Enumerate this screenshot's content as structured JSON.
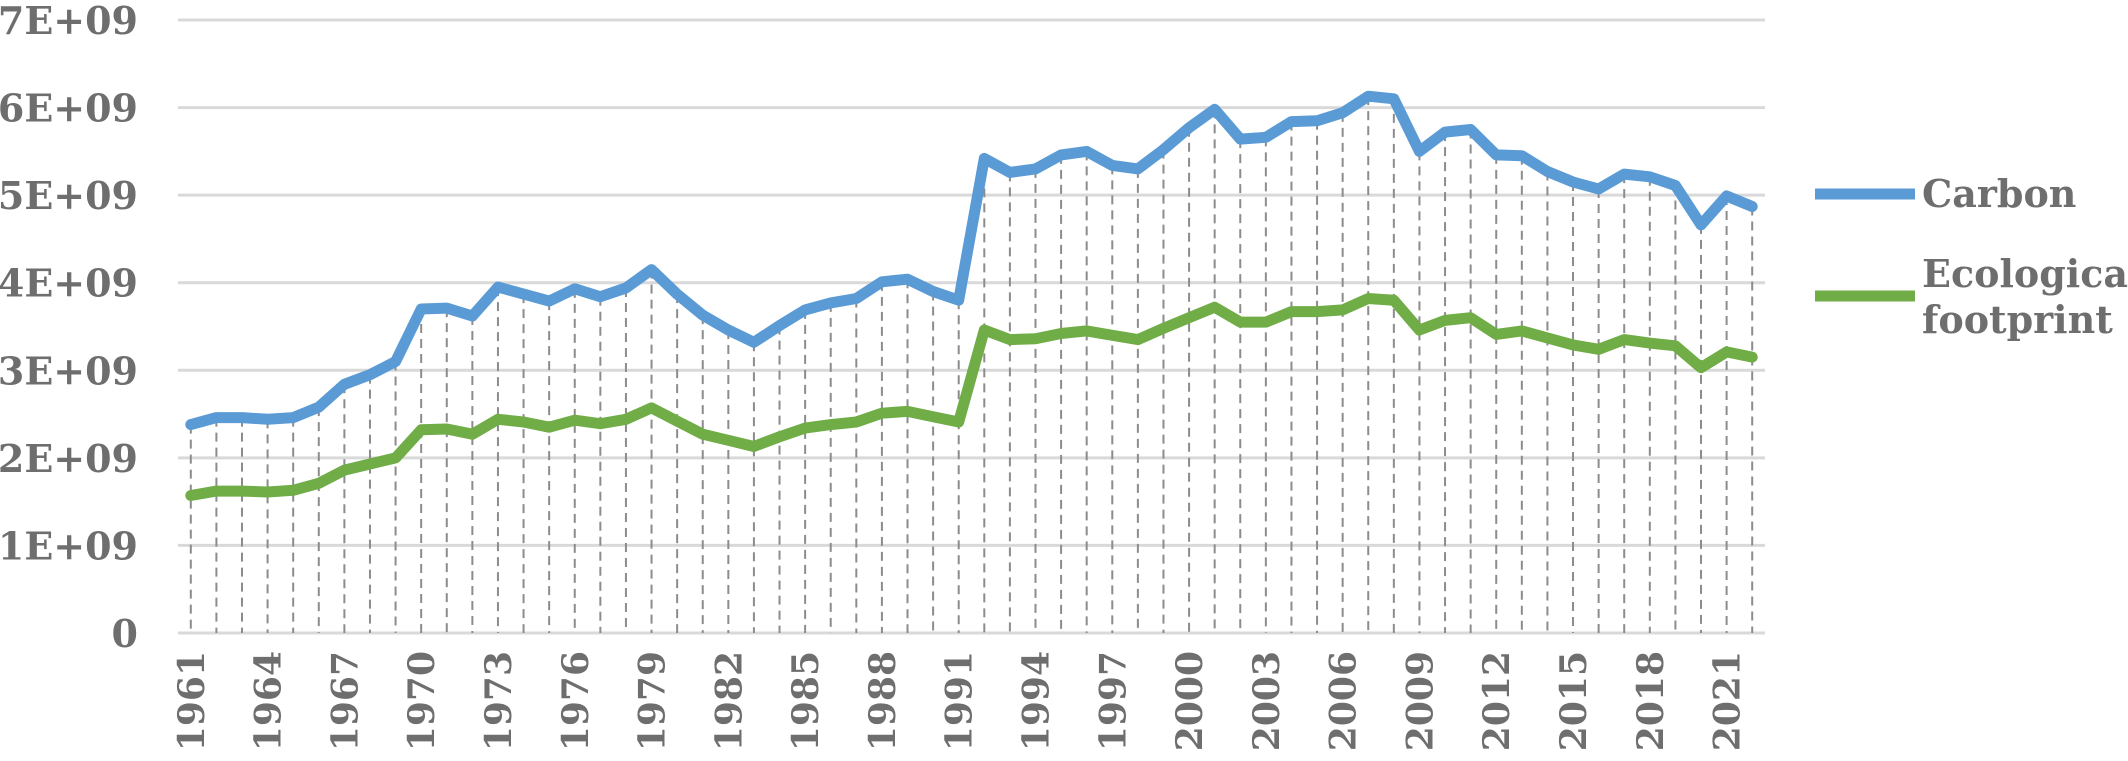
{
  "chart_data": {
    "type": "line",
    "title": "",
    "xlabel": "",
    "ylabel": "",
    "ylim": [
      0,
      7000000000
    ],
    "y_ticks": [
      {
        "value": 0,
        "label": "0"
      },
      {
        "value": 1000000000,
        "label": "1E+09"
      },
      {
        "value": 2000000000,
        "label": "2E+09"
      },
      {
        "value": 3000000000,
        "label": "3E+09"
      },
      {
        "value": 4000000000,
        "label": "4E+09"
      },
      {
        "value": 5000000000,
        "label": "5E+09"
      },
      {
        "value": 6000000000,
        "label": "6E+09"
      },
      {
        "value": 7000000000,
        "label": "7E+09"
      }
    ],
    "grid": true,
    "drop_lines": "dashed",
    "legend": "right",
    "x_tick_labels": [
      "1961",
      "1964",
      "1967",
      "1970",
      "1973",
      "1976",
      "1979",
      "1982",
      "1985",
      "1988",
      "1991",
      "1994",
      "1997",
      "2000",
      "2003",
      "2006",
      "2009",
      "2012",
      "2015",
      "2018",
      "2021"
    ],
    "x": [
      1961,
      1962,
      1963,
      1964,
      1965,
      1966,
      1967,
      1968,
      1969,
      1970,
      1971,
      1972,
      1973,
      1974,
      1975,
      1976,
      1977,
      1978,
      1979,
      1980,
      1981,
      1982,
      1983,
      1984,
      1985,
      1986,
      1987,
      1988,
      1989,
      1990,
      1991,
      1992,
      1993,
      1994,
      1995,
      1996,
      1997,
      1998,
      1999,
      2000,
      2001,
      2002,
      2003,
      2004,
      2005,
      2006,
      2007,
      2008,
      2009,
      2010,
      2011,
      2012,
      2013,
      2014,
      2015,
      2016,
      2017,
      2018,
      2019,
      2020,
      2021,
      2022
    ],
    "series": [
      {
        "name": "Carbon",
        "color": "#5b9bd5",
        "values": [
          2380000000.0,
          2460000000.0,
          2460000000.0,
          2440000000.0,
          2460000000.0,
          2580000000.0,
          2840000000.0,
          2950000000.0,
          3100000000.0,
          3700000000.0,
          3710000000.0,
          3620000000.0,
          3950000000.0,
          3870000000.0,
          3790000000.0,
          3930000000.0,
          3840000000.0,
          3940000000.0,
          4150000000.0,
          3870000000.0,
          3630000000.0,
          3460000000.0,
          3320000000.0,
          3510000000.0,
          3690000000.0,
          3770000000.0,
          3820000000.0,
          4010000000.0,
          4040000000.0,
          3900000000.0,
          3800000000.0,
          5420000000.0,
          5260000000.0,
          5300000000.0,
          5460000000.0,
          5500000000.0,
          5340000000.0,
          5300000000.0,
          5520000000.0,
          5770000000.0,
          5980000000.0,
          5640000000.0,
          5660000000.0,
          5840000000.0,
          5850000000.0,
          5940000000.0,
          6130000000.0,
          6100000000.0,
          5500000000.0,
          5720000000.0,
          5750000000.0,
          5460000000.0,
          5450000000.0,
          5270000000.0,
          5150000000.0,
          5070000000.0,
          5240000000.0,
          5210000000.0,
          5110000000.0,
          4660000000.0,
          4990000000.0,
          4870000000.0
        ]
      },
      {
        "name": "Ecological footprint",
        "legend_lines": [
          "Ecological",
          "footprint"
        ],
        "color": "#70ad47",
        "values": [
          1570000000.0,
          1620000000.0,
          1620000000.0,
          1610000000.0,
          1630000000.0,
          1710000000.0,
          1860000000.0,
          1930000000.0,
          2000000000.0,
          2320000000.0,
          2330000000.0,
          2270000000.0,
          2440000000.0,
          2410000000.0,
          2350000000.0,
          2430000000.0,
          2390000000.0,
          2440000000.0,
          2570000000.0,
          2420000000.0,
          2270000000.0,
          2200000000.0,
          2130000000.0,
          2240000000.0,
          2340000000.0,
          2380000000.0,
          2410000000.0,
          2510000000.0,
          2530000000.0,
          2470000000.0,
          2410000000.0,
          3460000000.0,
          3350000000.0,
          3360000000.0,
          3420000000.0,
          3450000000.0,
          3400000000.0,
          3350000000.0,
          3480000000.0,
          3600000000.0,
          3720000000.0,
          3550000000.0,
          3550000000.0,
          3670000000.0,
          3670000000.0,
          3690000000.0,
          3820000000.0,
          3800000000.0,
          3460000000.0,
          3570000000.0,
          3600000000.0,
          3410000000.0,
          3450000000.0,
          3370000000.0,
          3290000000.0,
          3240000000.0,
          3350000000.0,
          3310000000.0,
          3280000000.0,
          3030000000.0,
          3210000000.0,
          3150000000.0
        ]
      }
    ]
  }
}
